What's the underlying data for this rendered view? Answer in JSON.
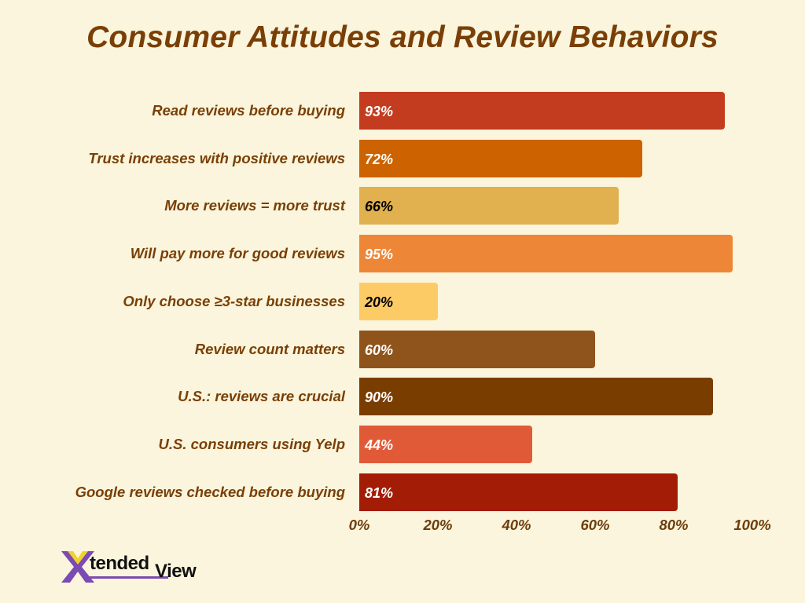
{
  "title": "Consumer Attitudes and Review Behaviors",
  "logo": {
    "part1": "tended",
    "part2": "View",
    "mark": "X",
    "brand_name": "XtendedView"
  },
  "axis": {
    "ticks": [
      "0%",
      "20%",
      "40%",
      "60%",
      "80%",
      "100%"
    ]
  },
  "rows": [
    {
      "label": "Read reviews before buying",
      "value": 93,
      "display": "93%",
      "color": "#c33c1f",
      "text_color": "#ffffff"
    },
    {
      "label": "Trust increases with positive reviews",
      "value": 72,
      "display": "72%",
      "color": "#cc6200",
      "text_color": "#ffffff"
    },
    {
      "label": "More reviews = more trust",
      "value": 66,
      "display": "66%",
      "color": "#e1b04f",
      "text_color": "#000000"
    },
    {
      "label": "Will pay more for good reviews",
      "value": 95,
      "display": "95%",
      "color": "#ee8638",
      "text_color": "#ffffff"
    },
    {
      "label": "Only choose ≥3-star businesses",
      "value": 20,
      "display": "20%",
      "color": "#fdcb66",
      "text_color": "#000000"
    },
    {
      "label": "Review count matters",
      "value": 60,
      "display": "60%",
      "color": "#8f531c",
      "text_color": "#ffffff"
    },
    {
      "label": "U.S.: reviews are crucial",
      "value": 90,
      "display": "90%",
      "color": "#7a3d00",
      "text_color": "#ffffff"
    },
    {
      "label": "U.S. consumers using Yelp",
      "value": 44,
      "display": "44%",
      "color": "#e15a37",
      "text_color": "#ffffff"
    },
    {
      "label": "Google reviews checked before buying",
      "value": 81,
      "display": "81%",
      "color": "#a31c06",
      "text_color": "#ffffff"
    }
  ],
  "chart_data": {
    "type": "bar",
    "orientation": "horizontal",
    "title": "Consumer Attitudes and Review Behaviors",
    "categories": [
      "Read reviews before buying",
      "Trust increases with positive reviews",
      "More reviews = more trust",
      "Will pay more for good reviews",
      "Only choose ≥3-star businesses",
      "Review count matters",
      "U.S.: reviews are crucial",
      "U.S. consumers using Yelp",
      "Google reviews checked before buying"
    ],
    "values": [
      93,
      72,
      66,
      95,
      20,
      60,
      90,
      44,
      81
    ],
    "colors": [
      "#c33c1f",
      "#cc6200",
      "#e1b04f",
      "#ee8638",
      "#fdcb66",
      "#8f531c",
      "#7a3d00",
      "#e15a37",
      "#a31c06"
    ],
    "data_labels": [
      "93%",
      "72%",
      "66%",
      "95%",
      "20%",
      "60%",
      "90%",
      "44%",
      "81%"
    ],
    "xlabel": "",
    "ylabel": "",
    "xlim": [
      0,
      100
    ],
    "xticks": [
      "0%",
      "20%",
      "40%",
      "60%",
      "80%",
      "100%"
    ],
    "grid": false,
    "legend": null,
    "background": "#faf5dc",
    "text_color": "#7a3f06"
  }
}
